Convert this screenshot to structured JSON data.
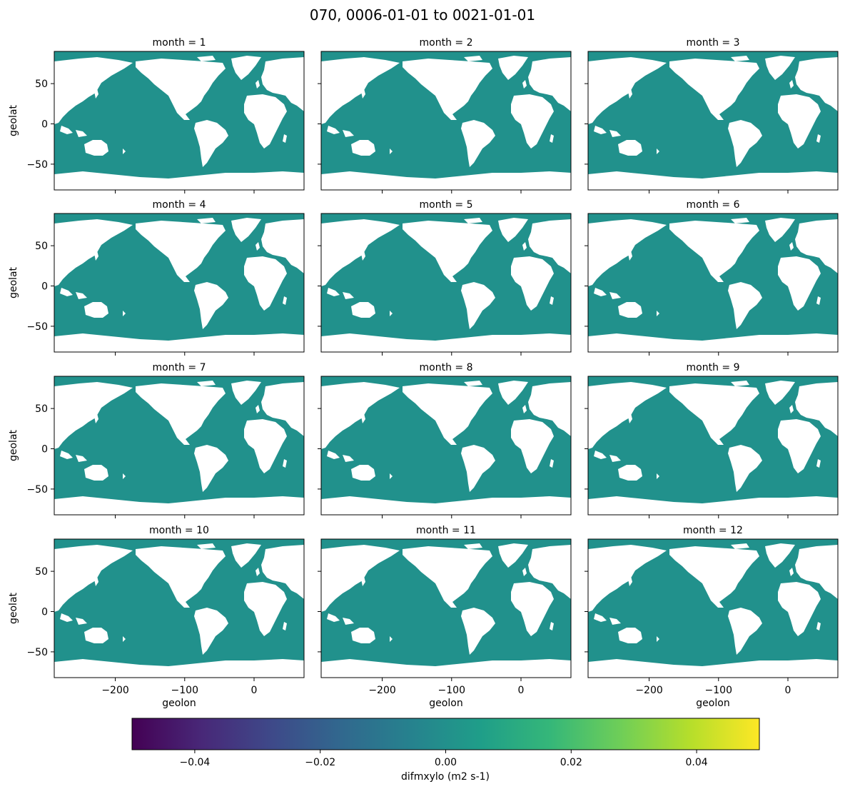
{
  "figure": {
    "title": "070, 0006-01-01 to 0021-01-01"
  },
  "colors": {
    "ocean": "#21918c",
    "land": "#ffffff",
    "frame": "#000000",
    "colormap": [
      "#440154",
      "#482878",
      "#3e4989",
      "#31688e",
      "#26828e",
      "#1f9e89",
      "#35b779",
      "#6ece58",
      "#b5de2b",
      "#fde725"
    ]
  },
  "chart_data": {
    "type": "heatmap",
    "variable": "difmxylo",
    "units": "m2 s-1",
    "field_value_everywhere": 0.0,
    "land_mask": "white",
    "facet": "month",
    "panels": [
      {
        "month": 1,
        "title": "month = 1"
      },
      {
        "month": 2,
        "title": "month = 2"
      },
      {
        "month": 3,
        "title": "month = 3"
      },
      {
        "month": 4,
        "title": "month = 4"
      },
      {
        "month": 5,
        "title": "month = 5"
      },
      {
        "month": 6,
        "title": "month = 6"
      },
      {
        "month": 7,
        "title": "month = 7"
      },
      {
        "month": 8,
        "title": "month = 8"
      },
      {
        "month": 9,
        "title": "month = 9"
      },
      {
        "month": 10,
        "title": "month = 10"
      },
      {
        "month": 11,
        "title": "month = 11"
      },
      {
        "month": 12,
        "title": "month = 12"
      }
    ],
    "xlabel": "geolon",
    "ylabel": "geolat",
    "xlim": [
      -288,
      72
    ],
    "ylim": [
      -82,
      90
    ],
    "xticks": [
      -200,
      -100,
      0
    ],
    "xtick_labels": [
      "−200",
      "−100",
      "0"
    ],
    "yticks": [
      50,
      0,
      -50
    ],
    "ytick_labels": [
      "50",
      "0",
      "−50"
    ],
    "colorbar": {
      "label": "difmxylo (m2 s-1)",
      "vmin": -0.05,
      "vmax": 0.05,
      "ticks": [
        -0.04,
        -0.02,
        0.0,
        0.02,
        0.04
      ],
      "tick_labels": [
        "−0.04",
        "−0.02",
        "0.00",
        "0.02",
        "0.04"
      ],
      "orientation": "horizontal",
      "colormap": "viridis"
    }
  }
}
